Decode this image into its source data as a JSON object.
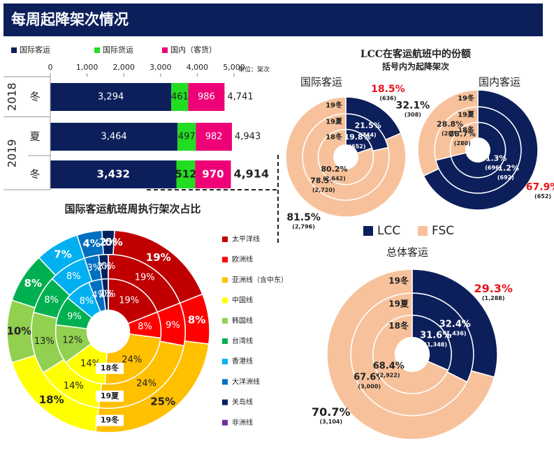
{
  "header": {
    "title": "每周起降架次情况"
  },
  "chart_data": [
    {
      "type": "bar",
      "orientation": "horizontal",
      "stacked": true,
      "groups": [
        {
          "name": "2018",
          "categories": [
            "冬"
          ]
        },
        {
          "name": "2019",
          "categories": [
            "夏",
            "冬"
          ]
        }
      ],
      "unit": "单位：架次",
      "xlim": [
        0,
        5000
      ],
      "xticks": [
        0,
        {
          "value": 1000,
          "label": "1,000"
        },
        {
          "value": 2000,
          "label": "2,000"
        },
        {
          "value": 3000,
          "label": "3,000"
        },
        {
          "value": 4000,
          "label": "4,000"
        },
        {
          "value": 5000,
          "label": "5,000"
        }
      ],
      "series": [
        {
          "name": "国际客运",
          "color": "#0c1f5b",
          "values": [
            3294,
            3464,
            3432
          ],
          "value_labels": [
            "3,294",
            "3,464",
            "3,432"
          ]
        },
        {
          "name": "国际货运",
          "color": "#22dd22",
          "values": [
            461,
            497,
            512
          ]
        },
        {
          "name": "国内（客货）",
          "color": "#ee0077",
          "values": [
            986,
            982,
            970
          ]
        }
      ],
      "totals": [
        4741,
        4943,
        4914
      ],
      "total_labels": [
        "4,741",
        "4,943",
        "4,914"
      ]
    },
    {
      "type": "donut",
      "title": "LCC在客运航班中的份额",
      "subtitle": "括号内为起降架次",
      "series": [
        {
          "name": "LCC",
          "color": "#0c1f5b"
        },
        {
          "name": "FSC",
          "color": "#f7c29b"
        }
      ],
      "highlight_color": "#e8141b",
      "panels": [
        {
          "title": "国际客运",
          "rings": [
            "19冬",
            "19夏",
            "18冬"
          ],
          "shares": [
            {
              "values": [
                18.5,
                21.5,
                19.8
              ],
              "value_labels": [
                "18.5%",
                "21.5%",
                "19.8%"
              ],
              "counts": [
                636,
                744,
                652
              ],
              "count_labels": [
                "(636)",
                "(744)",
                "(652)"
              ]
            },
            {
              "values": [
                81.5,
                78.5,
                80.2
              ],
              "value_labels": [
                "81.5%",
                "78.5%",
                "80.2%"
              ],
              "counts": [
                2796,
                2720,
                2642
              ],
              "count_labels": [
                "(2,796)",
                "(2,720)",
                "(2,642)"
              ]
            }
          ]
        },
        {
          "title": "国内客运",
          "rings": [
            "19冬",
            "19夏",
            "18冬"
          ],
          "shares": [
            {
              "values": [
                67.9,
                71.2,
                71.3
              ],
              "value_labels": [
                "67.9%",
                "71.2%",
                "71.3%"
              ],
              "counts": [
                652,
                692,
                696
              ],
              "count_labels": [
                "(652)",
                "(692)",
                "(696)"
              ]
            },
            {
              "values": [
                32.1,
                28.8,
                28.7
              ],
              "value_labels": [
                "32.1%",
                "28.8%",
                "28.7%"
              ],
              "counts": [
                308,
                280,
                280
              ],
              "count_labels": [
                "(308)",
                "(280)",
                "(280)"
              ]
            }
          ]
        },
        {
          "title": "总体客运",
          "rings": [
            "19冬",
            "19夏",
            "18冬"
          ],
          "shares": [
            {
              "values": [
                29.3,
                32.4,
                31.6
              ],
              "value_labels": [
                "29.3%",
                "32.4%",
                "31.6%"
              ],
              "counts": [
                1288,
                1436,
                1348
              ],
              "count_labels": [
                "(1,288)",
                "(1,436)",
                "(1,348)"
              ]
            },
            {
              "values": [
                70.7,
                67.6,
                68.4
              ],
              "value_labels": [
                "70.7%",
                "67.6%",
                "68.4%"
              ],
              "counts": [
                3104,
                3000,
                2922
              ],
              "count_labels": [
                "(3,104)",
                "(3,000)",
                "(2,922)"
              ]
            }
          ]
        }
      ]
    },
    {
      "type": "donut",
      "title": "国际客运航班周执行架次占比",
      "rings": [
        "19冬",
        "19夏",
        "18冬"
      ],
      "series": [
        {
          "name": "太平洋线",
          "color": "#c00000",
          "values": [
            19,
            19,
            19
          ],
          "value_labels": [
            "19%",
            "19%",
            "19%"
          ]
        },
        {
          "name": "欧洲线",
          "color": "#ff0000",
          "values": [
            8,
            9,
            8
          ],
          "value_labels": [
            "8%",
            "9%",
            "8%"
          ]
        },
        {
          "name": "亚洲线（含中东）",
          "color": "#ffc000",
          "values": [
            25,
            24,
            24
          ],
          "value_labels": [
            "25%",
            "24%",
            "24%"
          ]
        },
        {
          "name": "中国线",
          "color": "#ffff00",
          "values": [
            18,
            14,
            14
          ],
          "value_labels": [
            "18%",
            "14%",
            "14%"
          ]
        },
        {
          "name": "韩国线",
          "color": "#92d050",
          "values": [
            10,
            13,
            12
          ],
          "value_labels": [
            "10%",
            "13%",
            "12%"
          ]
        },
        {
          "name": "台湾线",
          "color": "#00b050",
          "values": [
            8,
            8,
            9
          ],
          "value_labels": [
            "8%",
            "8%",
            "9%"
          ]
        },
        {
          "name": "香港线",
          "color": "#00b0f0",
          "values": [
            7,
            8,
            8
          ],
          "value_labels": [
            "7%",
            "8%",
            "8%"
          ]
        },
        {
          "name": "大洋洲线",
          "color": "#0070c0",
          "values": [
            4,
            3,
            4
          ],
          "value_labels": [
            "4%",
            "3%",
            "4%"
          ]
        },
        {
          "name": "关岛线",
          "color": "#002060",
          "values": [
            2,
            2,
            2
          ],
          "value_labels": [
            "2%",
            "2%",
            "2%"
          ]
        },
        {
          "name": "非洲线",
          "color": "#7030a0",
          "values": [
            0,
            0,
            0
          ],
          "value_labels": [
            "0%",
            "0%",
            "0%"
          ]
        }
      ]
    }
  ]
}
